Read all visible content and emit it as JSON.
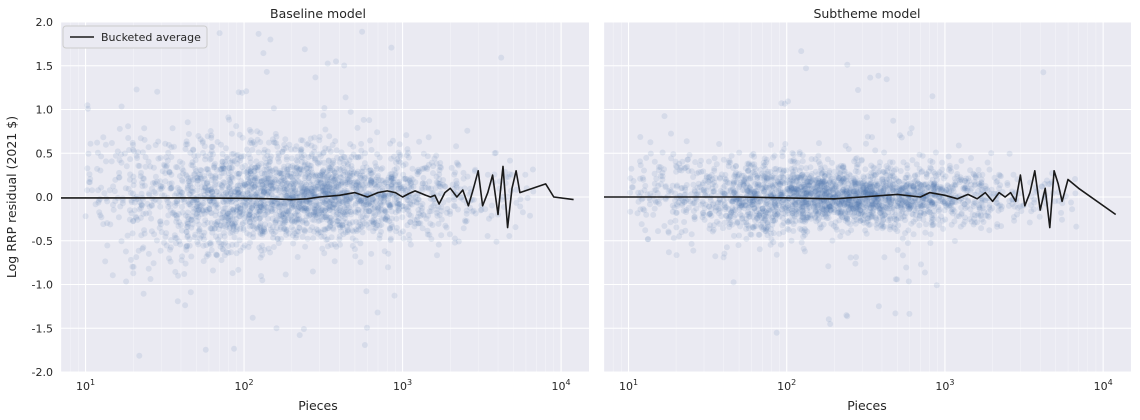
{
  "chart_data": [
    {
      "type": "scatter",
      "title": "Baseline model",
      "xlabel": "Pieces",
      "ylabel": "Log RRP residual (2021 $)",
      "xscale": "log",
      "xlim": [
        7,
        15000
      ],
      "ylim": [
        -2.0,
        2.0
      ],
      "xticks": [
        {
          "value": 10,
          "base": "10",
          "exp": "1"
        },
        {
          "value": 100,
          "base": "10",
          "exp": "2"
        },
        {
          "value": 1000,
          "base": "10",
          "exp": "3"
        },
        {
          "value": 10000,
          "base": "10",
          "exp": "4"
        }
      ],
      "yticks": [
        "-2.0",
        "-1.5",
        "-1.0",
        "-0.5",
        "0.0",
        "0.5",
        "1.0",
        "1.5",
        "2.0"
      ],
      "grid": true,
      "scatter_color": "#4c72b0",
      "line_color": "#1a1a1a",
      "legend": {
        "position": "top-left",
        "entries": [
          "Bucketed average"
        ]
      },
      "series": [
        {
          "name": "Bucketed average",
          "kind": "line",
          "points": [
            [
              7,
              -0.01
            ],
            [
              20,
              -0.01
            ],
            [
              50,
              -0.01
            ],
            [
              100,
              -0.015
            ],
            [
              150,
              -0.02
            ],
            [
              200,
              -0.03
            ],
            [
              250,
              -0.02
            ],
            [
              300,
              0.0
            ],
            [
              400,
              0.02
            ],
            [
              500,
              0.05
            ],
            [
              600,
              0.0
            ],
            [
              700,
              0.05
            ],
            [
              800,
              0.07
            ],
            [
              900,
              0.05
            ],
            [
              1000,
              0.0
            ],
            [
              1100,
              0.04
            ],
            [
              1200,
              0.07
            ],
            [
              1400,
              0.02
            ],
            [
              1500,
              0.0
            ],
            [
              1600,
              0.02
            ],
            [
              1700,
              -0.08
            ],
            [
              1850,
              0.05
            ],
            [
              2000,
              0.1
            ],
            [
              2200,
              0.0
            ],
            [
              2400,
              0.08
            ],
            [
              2600,
              -0.1
            ],
            [
              2800,
              0.1
            ],
            [
              3000,
              0.3
            ],
            [
              3200,
              -0.1
            ],
            [
              3450,
              0.05
            ],
            [
              3700,
              0.25
            ],
            [
              4000,
              -0.2
            ],
            [
              4300,
              0.35
            ],
            [
              4600,
              -0.35
            ],
            [
              4900,
              0.1
            ],
            [
              5200,
              0.3
            ],
            [
              5500,
              0.05
            ],
            [
              8000,
              0.15
            ],
            [
              9000,
              0.0
            ],
            [
              12000,
              -0.03
            ]
          ]
        }
      ]
    },
    {
      "type": "scatter",
      "title": "Subtheme model",
      "xlabel": "Pieces",
      "xscale": "log",
      "xlim": [
        7,
        15000
      ],
      "ylim": [
        -2.0,
        2.0
      ],
      "xticks": [
        {
          "value": 10,
          "base": "10",
          "exp": "1"
        },
        {
          "value": 100,
          "base": "10",
          "exp": "2"
        },
        {
          "value": 1000,
          "base": "10",
          "exp": "3"
        },
        {
          "value": 10000,
          "base": "10",
          "exp": "4"
        }
      ],
      "grid": true,
      "scatter_color": "#4c72b0",
      "line_color": "#1a1a1a",
      "series": [
        {
          "name": "Bucketed average",
          "kind": "line",
          "points": [
            [
              7,
              0.0
            ],
            [
              50,
              0.0
            ],
            [
              100,
              -0.01
            ],
            [
              200,
              -0.02
            ],
            [
              300,
              0.0
            ],
            [
              500,
              0.03
            ],
            [
              700,
              0.0
            ],
            [
              800,
              0.05
            ],
            [
              1000,
              0.02
            ],
            [
              1200,
              -0.02
            ],
            [
              1400,
              0.03
            ],
            [
              1600,
              -0.02
            ],
            [
              1800,
              0.05
            ],
            [
              2000,
              -0.05
            ],
            [
              2200,
              0.05
            ],
            [
              2400,
              0.0
            ],
            [
              2600,
              0.05
            ],
            [
              2800,
              -0.05
            ],
            [
              3000,
              0.25
            ],
            [
              3200,
              -0.1
            ],
            [
              3450,
              0.05
            ],
            [
              3700,
              0.3
            ],
            [
              4000,
              -0.15
            ],
            [
              4300,
              0.1
            ],
            [
              4600,
              -0.35
            ],
            [
              4900,
              0.3
            ],
            [
              5200,
              0.15
            ],
            [
              5500,
              -0.05
            ],
            [
              6000,
              0.2
            ],
            [
              7000,
              0.1
            ],
            [
              12000,
              -0.2
            ]
          ]
        }
      ]
    }
  ]
}
